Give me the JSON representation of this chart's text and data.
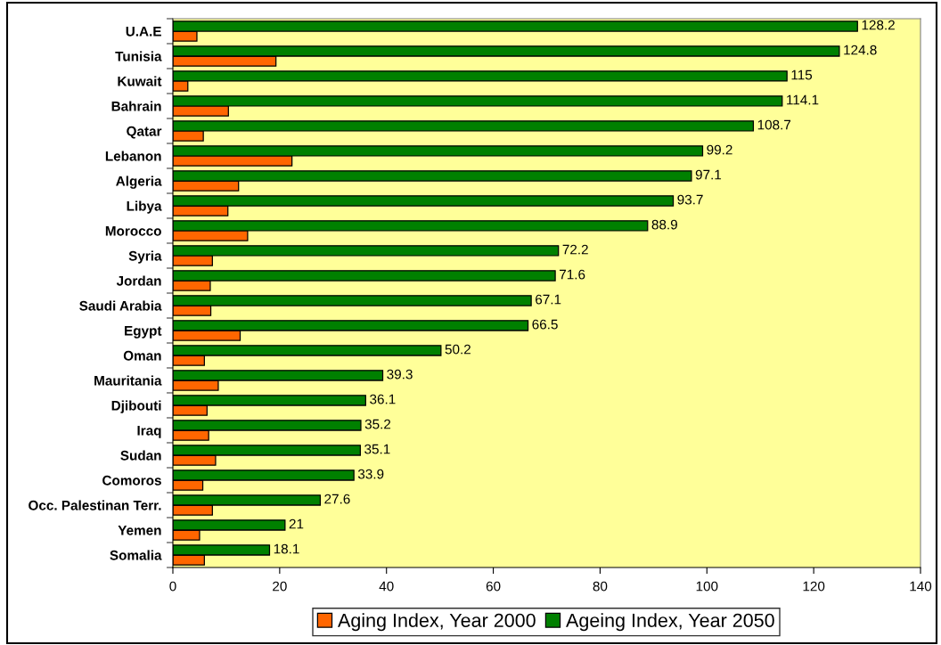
{
  "chart_data": {
    "type": "bar",
    "orientation": "horizontal",
    "categories": [
      "U.A.E",
      "Tunisia",
      "Kuwait",
      "Bahrain",
      "Qatar",
      "Lebanon",
      "Algeria",
      "Libya",
      "Morocco",
      "Syria",
      "Jordan",
      "Saudi Arabia",
      "Egypt",
      "Oman",
      "Mauritania",
      "Djibouti",
      "Iraq",
      "Sudan",
      "Comoros",
      "Occ. Palestinan Terr.",
      "Yemen",
      "Somalia"
    ],
    "series": [
      {
        "name": "Aging Index, Year 2000",
        "color": "#ff6600",
        "values": [
          4.5,
          19.3,
          2.8,
          10.4,
          5.7,
          22.3,
          12.3,
          10.3,
          14.0,
          7.4,
          7.0,
          7.1,
          12.6,
          5.9,
          8.5,
          6.4,
          6.7,
          8.0,
          5.6,
          7.4,
          5.0,
          5.9
        ]
      },
      {
        "name": "Ageing Index, Year 2050",
        "color": "#008000",
        "values": [
          128.2,
          124.8,
          115,
          114.1,
          108.7,
          99.2,
          97.1,
          93.7,
          88.9,
          72.2,
          71.6,
          67.1,
          66.5,
          50.2,
          39.3,
          36.1,
          35.2,
          35.1,
          33.9,
          27.6,
          21,
          18.1
        ],
        "value_labels": [
          "128.2",
          "124.8",
          "115",
          "114.1",
          "108.7",
          "99.2",
          "97.1",
          "93.7",
          "88.9",
          "72.2",
          "71.6",
          "67.1",
          "66.5",
          "50.2",
          "39.3",
          "36.1",
          "35.2",
          "35.1",
          "33.9",
          "27.6",
          "21",
          "18.1"
        ]
      }
    ],
    "xlim": [
      0,
      140
    ],
    "xticks": [
      0,
      20,
      40,
      60,
      80,
      100,
      120,
      140
    ],
    "legend": "bottom"
  }
}
